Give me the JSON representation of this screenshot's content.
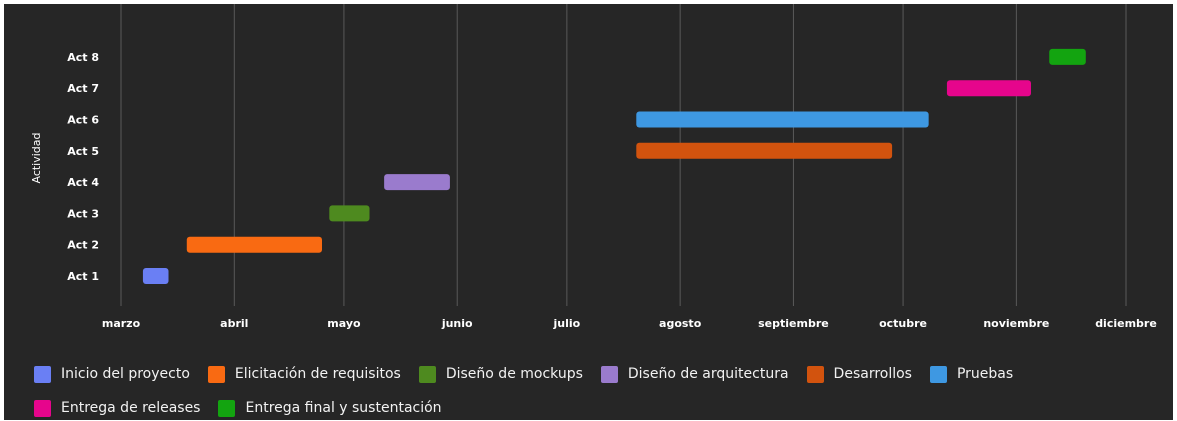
{
  "chart_data": {
    "type": "bar",
    "orientation": "gantt",
    "title": "",
    "xlabel": "",
    "ylabel": "Actividad",
    "x_ticks": [
      "marzo",
      "abril",
      "mayo",
      "junio",
      "julio",
      "agosto",
      "septiembre",
      "octubre",
      "noviembre",
      "diciembre"
    ],
    "xlim": [
      "2023-03-01",
      "2023-12-01"
    ],
    "categories": [
      "Act 1",
      "Act 2",
      "Act 3",
      "Act 4",
      "Act 5",
      "Act 6",
      "Act 7",
      "Act 8"
    ],
    "grid": true,
    "legend_position": "bottom",
    "series": [
      {
        "name": "Inicio del proyecto",
        "category": "Act 1",
        "start": "2023-03-07",
        "end": "2023-03-14",
        "color": "#6a7ff4"
      },
      {
        "name": "Elicitación de requisitos",
        "category": "Act 2",
        "start": "2023-03-19",
        "end": "2023-04-25",
        "color": "#f96a12"
      },
      {
        "name": "Diseño de mockups",
        "category": "Act 3",
        "start": "2023-04-27",
        "end": "2023-05-08",
        "color": "#4e8a1f"
      },
      {
        "name": "Diseño de arquitectura",
        "category": "Act 4",
        "start": "2023-05-12",
        "end": "2023-05-30",
        "color": "#9a7bcd"
      },
      {
        "name": "Desarrollos",
        "category": "Act 5",
        "start": "2023-07-20",
        "end": "2023-09-28",
        "color": "#d2530e"
      },
      {
        "name": "Pruebas",
        "category": "Act 6",
        "start": "2023-07-20",
        "end": "2023-10-08",
        "color": "#3e98e2"
      },
      {
        "name": "Entrega de releases",
        "category": "Act 7",
        "start": "2023-10-13",
        "end": "2023-11-05",
        "color": "#e6058c"
      },
      {
        "name": "Entrega final y sustentación",
        "category": "Act 8",
        "start": "2023-11-10",
        "end": "2023-11-20",
        "color": "#13a410"
      }
    ]
  }
}
